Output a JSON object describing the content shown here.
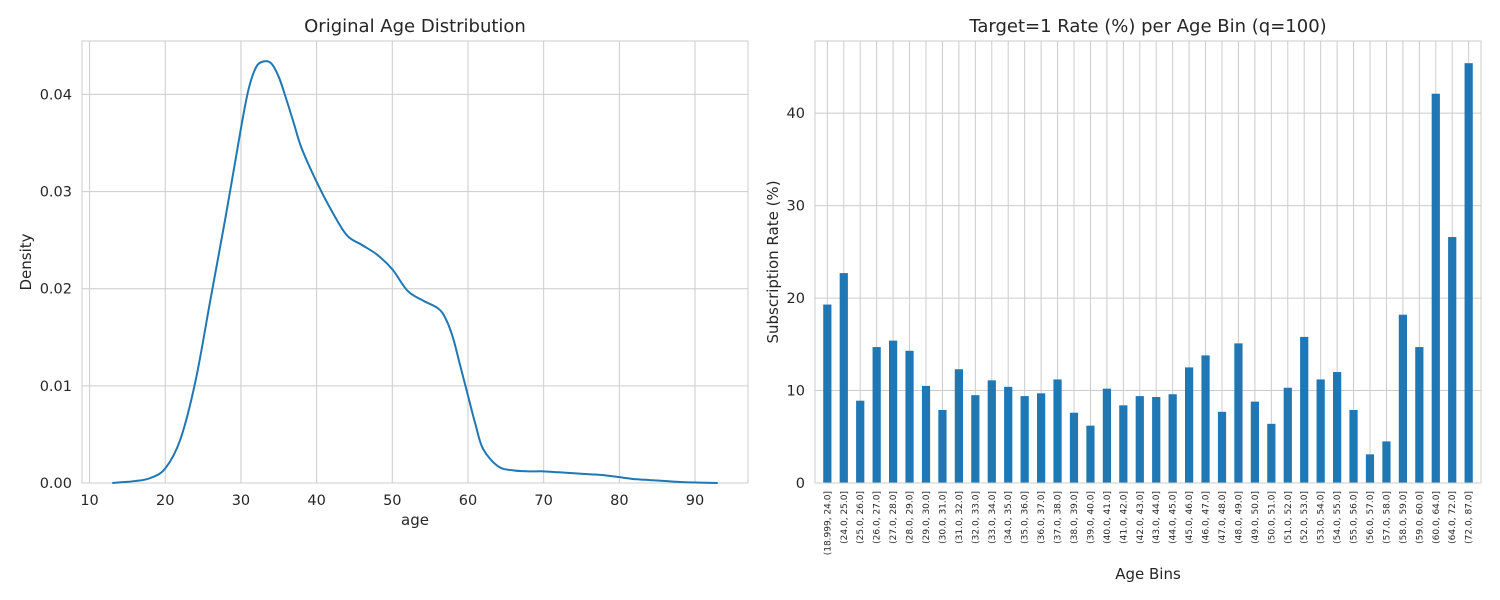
{
  "chart_data": [
    {
      "type": "area",
      "title": "Original Age Distribution",
      "xlabel": "age",
      "ylabel": "Density",
      "xlim": [
        9,
        97
      ],
      "ylim": [
        0,
        0.0455
      ],
      "xticks": [
        10,
        20,
        30,
        40,
        50,
        60,
        70,
        80,
        90
      ],
      "yticks": [
        0.0,
        0.01,
        0.02,
        0.03,
        0.04
      ],
      "ytick_labels": [
        "0.00",
        "0.01",
        "0.02",
        "0.03",
        "0.04"
      ],
      "grid": true,
      "series": [
        {
          "color": "#1f77b4",
          "x": [
            13,
            16,
            18,
            20,
            22,
            24,
            26,
            28,
            30,
            31,
            32,
            33,
            34,
            35,
            36,
            37,
            38,
            40,
            42,
            44,
            46,
            48,
            50,
            52,
            54,
            56,
            57,
            58,
            59,
            60,
            61,
            62,
            64,
            66,
            68,
            70,
            72,
            74,
            76,
            78,
            80,
            82,
            84,
            86,
            88,
            90,
            93
          ],
          "y": [
            0.0,
            0.0002,
            0.0005,
            0.0015,
            0.0045,
            0.0105,
            0.019,
            0.0275,
            0.0365,
            0.0405,
            0.0428,
            0.0434,
            0.0432,
            0.0418,
            0.0395,
            0.037,
            0.0345,
            0.031,
            0.028,
            0.0255,
            0.0245,
            0.0235,
            0.022,
            0.0198,
            0.0188,
            0.018,
            0.017,
            0.015,
            0.012,
            0.009,
            0.006,
            0.0035,
            0.0017,
            0.0013,
            0.0012,
            0.0012,
            0.0011,
            0.001,
            0.0009,
            0.0008,
            0.0006,
            0.0004,
            0.0003,
            0.0002,
            0.0001,
            5e-05,
            0.0
          ]
        }
      ]
    },
    {
      "type": "bar",
      "title": "Target=1 Rate (%) per Age Bin (q=100)",
      "xlabel": "Age Bins",
      "ylabel": "Subscription Rate (%)",
      "ylim": [
        0,
        47.8
      ],
      "yticks": [
        0,
        10,
        20,
        30,
        40
      ],
      "grid": true,
      "color": "#1f77b4",
      "categories": [
        "(18.999, 24.0]",
        "(24.0, 25.0]",
        "(25.0, 26.0]",
        "(26.0, 27.0]",
        "(27.0, 28.0]",
        "(28.0, 29.0]",
        "(29.0, 30.0]",
        "(30.0, 31.0]",
        "(31.0, 32.0]",
        "(32.0, 33.0]",
        "(33.0, 34.0]",
        "(34.0, 35.0]",
        "(35.0, 36.0]",
        "(36.0, 37.0]",
        "(37.0, 38.0]",
        "(38.0, 39.0]",
        "(39.0, 40.0]",
        "(40.0, 41.0]",
        "(41.0, 42.0]",
        "(42.0, 43.0]",
        "(43.0, 44.0]",
        "(44.0, 45.0]",
        "(45.0, 46.0]",
        "(46.0, 47.0]",
        "(47.0, 48.0]",
        "(48.0, 49.0]",
        "(49.0, 50.0]",
        "(50.0, 51.0]",
        "(51.0, 52.0]",
        "(52.0, 53.0]",
        "(53.0, 54.0]",
        "(54.0, 55.0]",
        "(55.0, 56.0]",
        "(56.0, 57.0]",
        "(57.0, 58.0]",
        "(58.0, 59.0]",
        "(59.0, 60.0]",
        "(60.0, 64.0]",
        "(64.0, 72.0]",
        "(72.0, 87.0]"
      ],
      "values": [
        19.3,
        22.7,
        8.9,
        14.7,
        15.4,
        14.3,
        10.5,
        7.9,
        12.3,
        9.5,
        11.1,
        10.4,
        9.4,
        9.7,
        11.2,
        7.6,
        6.2,
        10.2,
        8.4,
        9.4,
        9.3,
        9.6,
        12.5,
        13.8,
        7.7,
        15.1,
        8.8,
        6.4,
        10.3,
        15.8,
        11.2,
        12.0,
        7.9,
        3.1,
        4.5,
        18.2,
        14.7,
        42.1,
        26.6,
        45.4
      ]
    }
  ]
}
